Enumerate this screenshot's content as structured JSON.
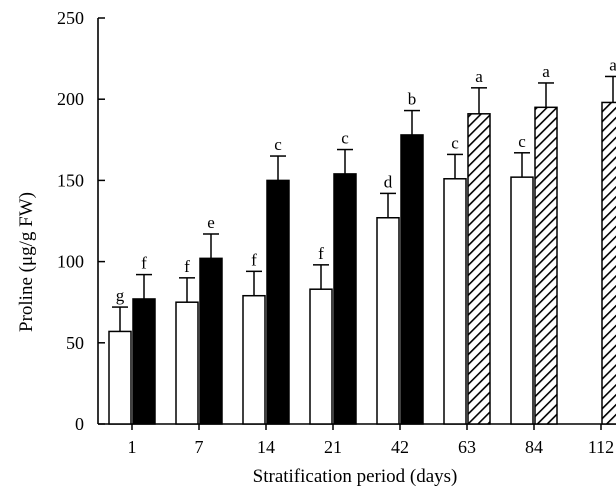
{
  "chart_data": {
    "type": "bar",
    "xlabel": "Stratification period (days)",
    "ylabel": "Proline (μg/g FW)",
    "ylim": [
      0,
      250
    ],
    "yticks": [
      0,
      50,
      100,
      150,
      200,
      250
    ],
    "categories": [
      "1",
      "7",
      "14",
      "21",
      "42",
      "63",
      "84",
      "112"
    ],
    "series": [
      {
        "fill": "white",
        "values": [
          57,
          75,
          79,
          83,
          127,
          151,
          152,
          null
        ],
        "errors": [
          15,
          15,
          15,
          15,
          15,
          15,
          15,
          null
        ],
        "letters": [
          "g",
          "f",
          "f",
          "f",
          "d",
          "c",
          "c",
          null
        ]
      },
      {
        "fill": "black",
        "values": [
          77,
          102,
          150,
          154,
          178,
          null,
          null,
          null
        ],
        "errors": [
          15,
          15,
          15,
          15,
          15,
          null,
          null,
          null
        ],
        "letters": [
          "f",
          "e",
          "c",
          "c",
          "b",
          null,
          null,
          null
        ]
      },
      {
        "fill": "hatched",
        "values": [
          null,
          null,
          null,
          null,
          null,
          191,
          195,
          198
        ],
        "errors": [
          null,
          null,
          null,
          null,
          null,
          16,
          15,
          16
        ],
        "letters": [
          null,
          null,
          null,
          null,
          null,
          "a",
          "a",
          "a"
        ]
      }
    ],
    "colors": {
      "axis": "#000000",
      "solid_bar": "#000000",
      "open_bar": "#ffffff"
    },
    "grid": false,
    "legend": "none"
  }
}
